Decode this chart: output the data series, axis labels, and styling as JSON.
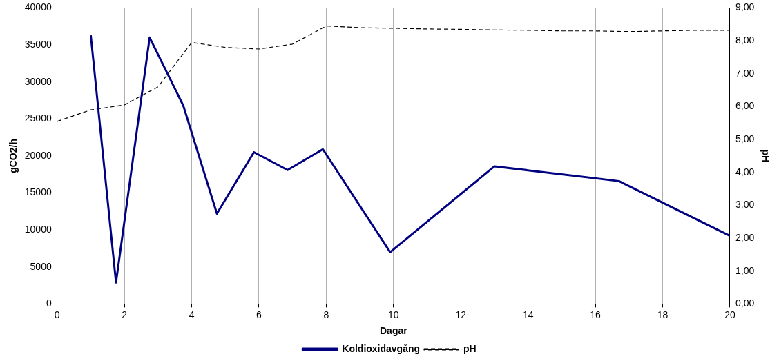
{
  "chart_data": {
    "type": "line",
    "xlabel": "Dagar",
    "ylabel": "gCO2/h",
    "y2label": "pH",
    "xlim": [
      0,
      20
    ],
    "xticks": [
      0,
      2,
      4,
      6,
      8,
      10,
      12,
      14,
      16,
      18,
      20
    ],
    "ylim": [
      0,
      40000
    ],
    "yticks": [
      0,
      5000,
      10000,
      15000,
      20000,
      25000,
      30000,
      35000,
      40000
    ],
    "y2lim": [
      0,
      9
    ],
    "y2ticks": [
      {
        "value": 0,
        "label": "0,00"
      },
      {
        "value": 1,
        "label": "1,00"
      },
      {
        "value": 2,
        "label": "2,00"
      },
      {
        "value": 3,
        "label": "3,00"
      },
      {
        "value": 4,
        "label": "4,00"
      },
      {
        "value": 5,
        "label": "5,00"
      },
      {
        "value": 6,
        "label": "6,00"
      },
      {
        "value": 7,
        "label": "7,00"
      },
      {
        "value": 8,
        "label": "8,00"
      },
      {
        "value": 9,
        "label": "9,00"
      }
    ],
    "grid": "x",
    "legend": "bottom",
    "marker": "none",
    "series": [
      {
        "name": "Koldioxidavgång",
        "color": "#000080",
        "line_style": "solid",
        "x": [
          1.0,
          1.75,
          2.75,
          3.75,
          4.75,
          5.85,
          6.85,
          7.9,
          9.9,
          13.0,
          16.7,
          20.0
        ],
        "values": [
          36300,
          2900,
          36000,
          26800,
          12200,
          20500,
          18100,
          20900,
          7000,
          18600,
          16600,
          9200
        ]
      },
      {
        "name": "pH",
        "color": "#000000",
        "axis": "y2",
        "line_style": "dashed",
        "x": [
          0,
          1,
          2,
          3,
          4,
          5,
          6,
          7,
          8,
          9,
          10,
          11,
          12,
          13,
          14,
          15,
          16,
          17,
          18,
          19,
          20
        ],
        "values": [
          5.55,
          5.9,
          6.05,
          6.6,
          7.95,
          7.8,
          7.75,
          7.9,
          8.45,
          8.4,
          8.38,
          8.36,
          8.35,
          8.33,
          8.32,
          8.3,
          8.3,
          8.28,
          8.3,
          8.32,
          8.32
        ]
      }
    ]
  }
}
